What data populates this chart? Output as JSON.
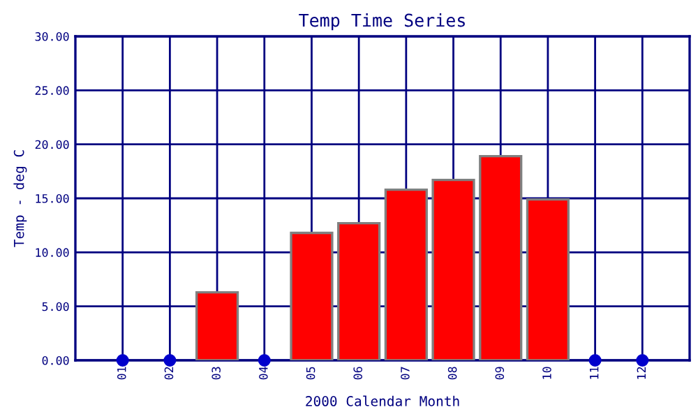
{
  "chart_data": {
    "type": "bar",
    "title": "Temp Time Series",
    "xlabel": "2000 Calendar Month",
    "ylabel": "Temp - deg C",
    "categories": [
      "01",
      "02",
      "03",
      "04",
      "05",
      "06",
      "07",
      "08",
      "09",
      "10",
      "11",
      "12"
    ],
    "series": [
      {
        "color": "#ff0000",
        "values": [
          null,
          null,
          6.3,
          null,
          11.8,
          12.7,
          15.8,
          16.7,
          18.9,
          14.9,
          null,
          null
        ]
      },
      {
        "type": "scatter",
        "color": "#0000cc",
        "x": [
          "01",
          "02",
          "04",
          "11",
          "12"
        ],
        "values": [
          0,
          0,
          0,
          0,
          0
        ],
        "marker": "circle"
      }
    ],
    "ylim": [
      0,
      30
    ],
    "yticks": [
      {
        "value": 0,
        "label": "0.00"
      },
      {
        "value": 5,
        "label": "5.00"
      },
      {
        "value": 10,
        "label": "10.00"
      },
      {
        "value": 15,
        "label": "15.00"
      },
      {
        "value": 20,
        "label": "20.00"
      },
      {
        "value": 25,
        "label": "25.00"
      },
      {
        "value": 30,
        "label": "30.00"
      }
    ],
    "grid": true,
    "legend": false
  }
}
